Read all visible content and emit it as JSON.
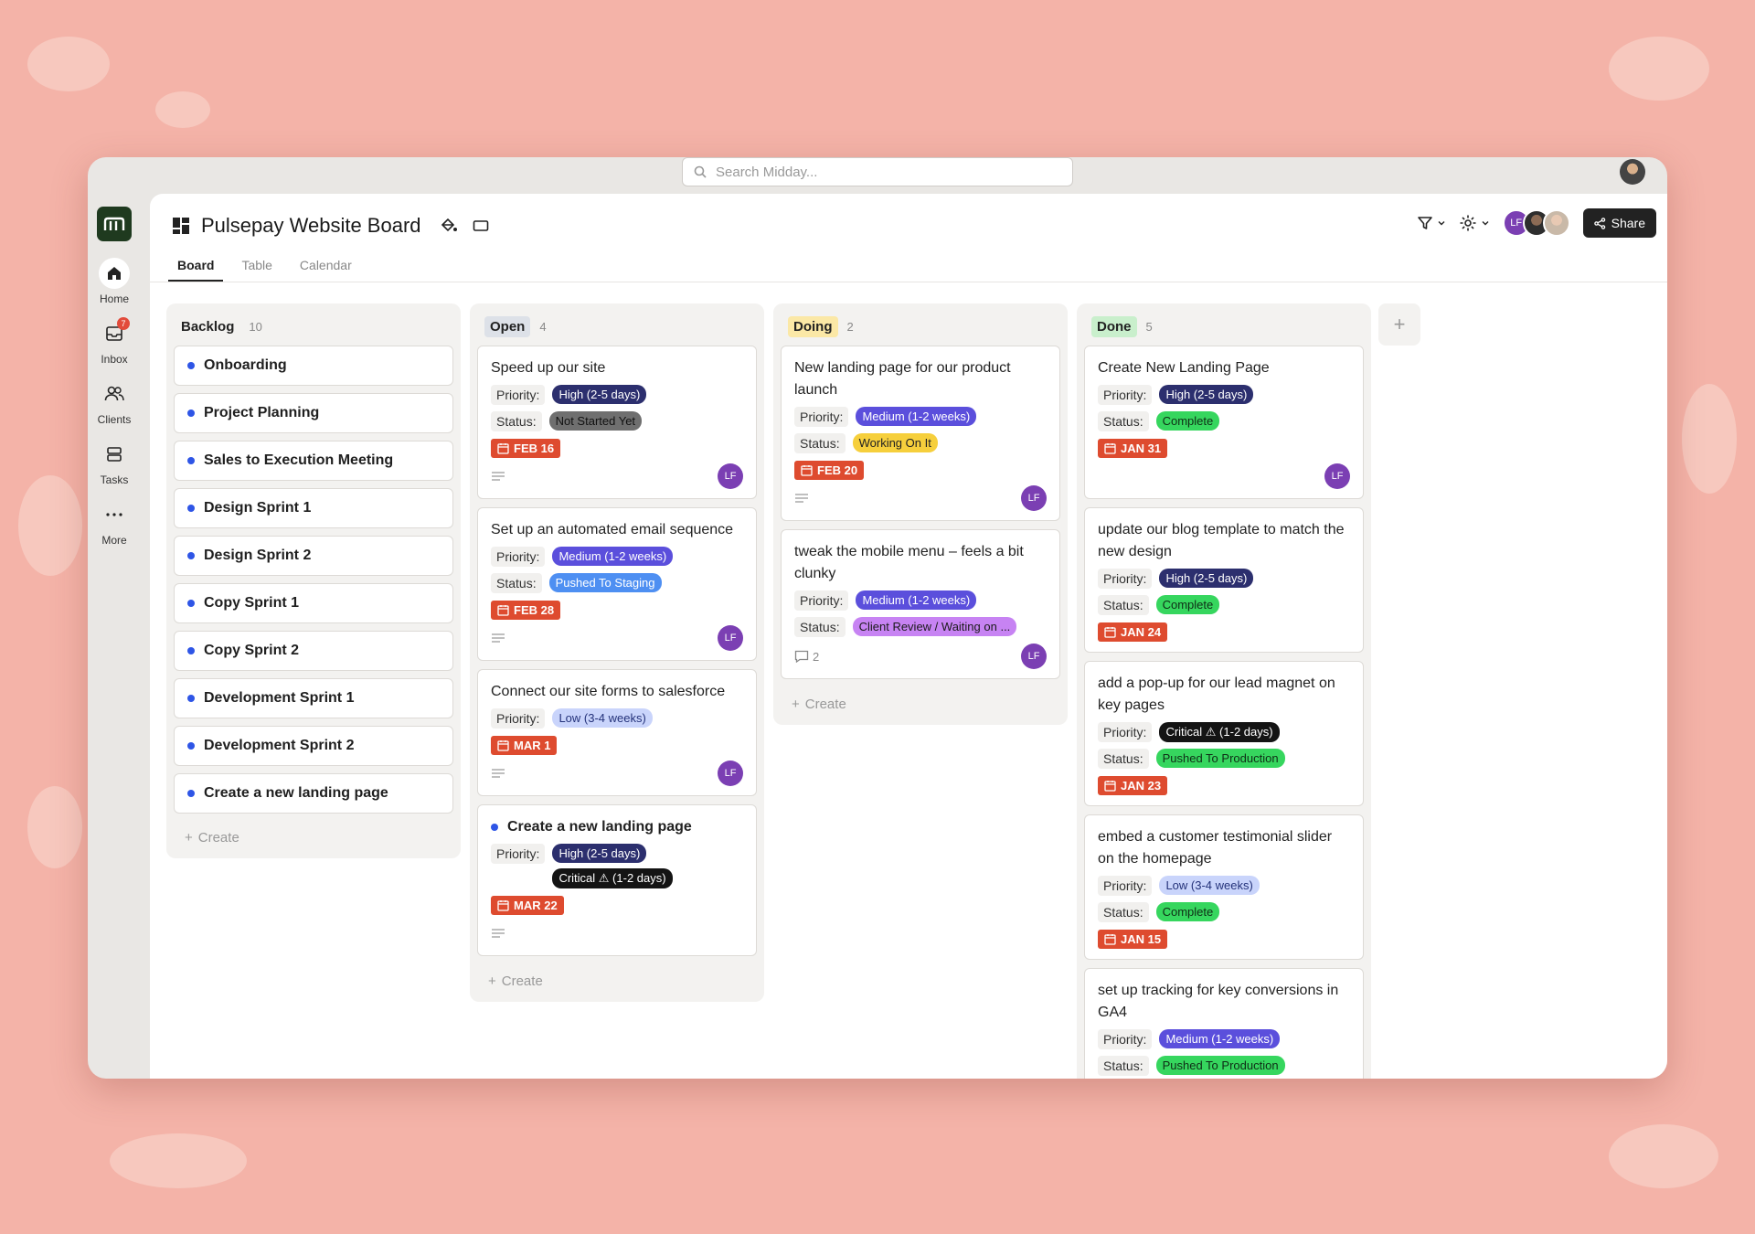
{
  "search": {
    "placeholder": "Search Midday..."
  },
  "sidebar": {
    "items": [
      {
        "label": "Home",
        "icon": "home-icon",
        "active": true
      },
      {
        "label": "Inbox",
        "icon": "inbox-icon",
        "badge": "7"
      },
      {
        "label": "Clients",
        "icon": "clients-icon"
      },
      {
        "label": "Tasks",
        "icon": "tasks-icon"
      },
      {
        "label": "More",
        "icon": "more-icon"
      }
    ]
  },
  "board": {
    "title": "Pulsepay Website Board",
    "tabs": [
      {
        "label": "Board",
        "active": true
      },
      {
        "label": "Table"
      },
      {
        "label": "Calendar"
      }
    ],
    "share_label": "Share",
    "avatar_initials": "LF"
  },
  "colors": {
    "accent_dot": "#2e55e6",
    "date_badge": "#de4b2f",
    "avatar": "#7b3fb3"
  },
  "columns": {
    "backlog": {
      "title": "Backlog",
      "count": "10",
      "items": [
        "Onboarding",
        "Project Planning",
        "Sales to Execution Meeting",
        "Design Sprint 1",
        "Design Sprint 2",
        "Copy Sprint 1",
        "Copy Sprint 2",
        "Development Sprint 1",
        "Development Sprint 2",
        "Create a new landing page"
      ],
      "create_label": "Create"
    },
    "open": {
      "title": "Open",
      "count": "4",
      "create_label": "Create",
      "cards": [
        {
          "title": "Speed up our site",
          "priority_label": "Priority:",
          "priority": "High (2-5 days)",
          "status_label": "Status:",
          "status": "Not Started Yet",
          "date": "FEB 16",
          "avatar": "LF"
        },
        {
          "title": "Set up an automated email sequence",
          "priority_label": "Priority:",
          "priority": "Medium (1-2 weeks)",
          "status_label": "Status:",
          "status": "Pushed To Staging",
          "date": "FEB 28",
          "avatar": "LF"
        },
        {
          "title": "Connect our site forms to salesforce",
          "priority_label": "Priority:",
          "priority": "Low (3-4 weeks)",
          "date": "MAR 1",
          "avatar": "LF"
        },
        {
          "title": "Create a new landing page",
          "priority_label": "Priority:",
          "priority": "High (2-5 days)",
          "priority2": "Critical ⚠ (1-2 days)",
          "date": "MAR 22"
        }
      ]
    },
    "doing": {
      "title": "Doing",
      "count": "2",
      "create_label": "Create",
      "cards": [
        {
          "title": "New landing page for our product launch",
          "priority_label": "Priority:",
          "priority": "Medium (1-2 weeks)",
          "status_label": "Status:",
          "status": "Working On It",
          "date": "FEB 20",
          "avatar": "LF"
        },
        {
          "title": "tweak the mobile menu – feels a bit clunky",
          "priority_label": "Priority:",
          "priority": "Medium (1-2 weeks)",
          "status_label": "Status:",
          "status": "Client Review / Waiting on ...",
          "comments": "2",
          "avatar": "LF"
        }
      ]
    },
    "done": {
      "title": "Done",
      "count": "5",
      "cards": [
        {
          "title": "Create New Landing Page",
          "priority_label": "Priority:",
          "priority": "High (2-5 days)",
          "status_label": "Status:",
          "status": "Complete",
          "date": "JAN 31",
          "avatar": "LF"
        },
        {
          "title": "update our blog template to match the new design",
          "priority_label": "Priority:",
          "priority": "High (2-5 days)",
          "status_label": "Status:",
          "status": "Complete",
          "date": "JAN 24"
        },
        {
          "title": "add a pop-up for our lead magnet on key pages",
          "priority_label": "Priority:",
          "priority": "Critical ⚠ (1-2 days)",
          "status_label": "Status:",
          "status": "Pushed To Production",
          "date": "JAN 23"
        },
        {
          "title": "embed a customer testimonial slider on the homepage",
          "priority_label": "Priority:",
          "priority": "Low (3-4 weeks)",
          "status_label": "Status:",
          "status": "Complete",
          "date": "JAN 15"
        },
        {
          "title": "set up tracking for key conversions in GA4",
          "priority_label": "Priority:",
          "priority": "Medium (1-2 weeks)",
          "status_label": "Status:",
          "status": "Pushed To Production"
        }
      ]
    }
  }
}
